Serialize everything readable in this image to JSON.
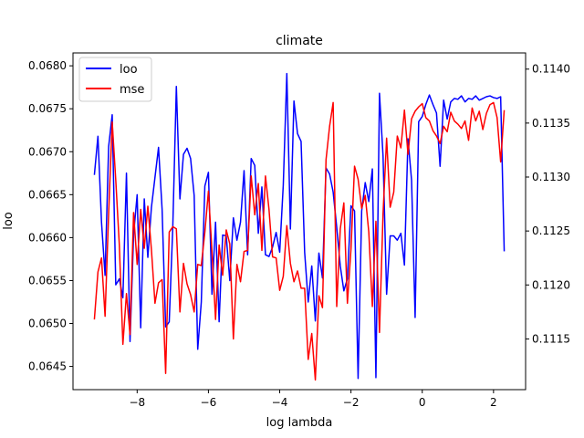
{
  "chart_data": {
    "type": "line",
    "title": "climate",
    "xlabel": "log lambda",
    "ylabel_left": "loo",
    "ylabel_right": "",
    "xlim": [
      -9.8,
      2.9
    ],
    "ylim_left": [
      0.06423,
      0.06815
    ],
    "ylim_right": [
      0.11103,
      0.11415
    ],
    "x_ticks": [
      -8,
      -6,
      -4,
      -2,
      0,
      2
    ],
    "x_tick_labels": [
      "−8",
      "−6",
      "−4",
      "−2",
      "0",
      "2"
    ],
    "y_left_ticks": [
      0.0645,
      0.065,
      0.0655,
      0.066,
      0.0665,
      0.067,
      0.0675,
      0.068
    ],
    "y_left_tick_labels": [
      "0.0645",
      "0.0650",
      "0.0655",
      "0.0660",
      "0.0665",
      "0.0670",
      "0.0675",
      "0.0680"
    ],
    "y_right_ticks": [
      0.1115,
      0.112,
      0.1125,
      0.113,
      0.1135,
      0.114
    ],
    "y_right_tick_labels": [
      "0.1115",
      "0.1120",
      "0.1125",
      "0.1130",
      "0.1135",
      "0.1140"
    ],
    "grid": false,
    "legend_position": "top-left",
    "series": [
      {
        "name": "loo",
        "color": "#0000ff",
        "axis": "left",
        "points": [
          [
            -9.2,
            0.06673
          ],
          [
            -9.1,
            0.06718
          ],
          [
            -9.0,
            0.06618
          ],
          [
            -8.9,
            0.06556
          ],
          [
            -8.8,
            0.06706
          ],
          [
            -8.7,
            0.06743
          ],
          [
            -8.6,
            0.06545
          ],
          [
            -8.5,
            0.06552
          ],
          [
            -8.4,
            0.0653
          ],
          [
            -8.3,
            0.06675
          ],
          [
            -8.2,
            0.06479
          ],
          [
            -8.1,
            0.06603
          ],
          [
            -8.0,
            0.0665
          ],
          [
            -7.9,
            0.06495
          ],
          [
            -7.8,
            0.06645
          ],
          [
            -7.7,
            0.06577
          ],
          [
            -7.6,
            0.06635
          ],
          [
            -7.5,
            0.0667
          ],
          [
            -7.4,
            0.06705
          ],
          [
            -7.3,
            0.06633
          ],
          [
            -7.2,
            0.06496
          ],
          [
            -7.1,
            0.06502
          ],
          [
            -7.0,
            0.06612
          ],
          [
            -6.9,
            0.06776
          ],
          [
            -6.8,
            0.06645
          ],
          [
            -6.7,
            0.06697
          ],
          [
            -6.6,
            0.06704
          ],
          [
            -6.5,
            0.06692
          ],
          [
            -6.4,
            0.06649
          ],
          [
            -6.3,
            0.0647
          ],
          [
            -6.2,
            0.06525
          ],
          [
            -6.1,
            0.0666
          ],
          [
            -6.0,
            0.06676
          ],
          [
            -5.9,
            0.06534
          ],
          [
            -5.8,
            0.06618
          ],
          [
            -5.7,
            0.06502
          ],
          [
            -5.6,
            0.06603
          ],
          [
            -5.5,
            0.06602
          ],
          [
            -5.4,
            0.0655
          ],
          [
            -5.3,
            0.06623
          ],
          [
            -5.2,
            0.06597
          ],
          [
            -5.1,
            0.06618
          ],
          [
            -5.0,
            0.06678
          ],
          [
            -4.9,
            0.0658
          ],
          [
            -4.8,
            0.06692
          ],
          [
            -4.7,
            0.06684
          ],
          [
            -4.6,
            0.06605
          ],
          [
            -4.5,
            0.06659
          ],
          [
            -4.4,
            0.0658
          ],
          [
            -4.3,
            0.06578
          ],
          [
            -4.2,
            0.06589
          ],
          [
            -4.1,
            0.06606
          ],
          [
            -4.0,
            0.06583
          ],
          [
            -3.9,
            0.06661
          ],
          [
            -3.8,
            0.06791
          ],
          [
            -3.7,
            0.0661
          ],
          [
            -3.6,
            0.06759
          ],
          [
            -3.5,
            0.06721
          ],
          [
            -3.4,
            0.06712
          ],
          [
            -3.3,
            0.06583
          ],
          [
            -3.2,
            0.06525
          ],
          [
            -3.1,
            0.06567
          ],
          [
            -3.0,
            0.06503
          ],
          [
            -2.9,
            0.06582
          ],
          [
            -2.8,
            0.06553
          ],
          [
            -2.7,
            0.06681
          ],
          [
            -2.6,
            0.06674
          ],
          [
            -2.5,
            0.06653
          ],
          [
            -2.4,
            0.06612
          ],
          [
            -2.3,
            0.06567
          ],
          [
            -2.2,
            0.06538
          ],
          [
            -2.1,
            0.06552
          ],
          [
            -2.0,
            0.06637
          ],
          [
            -1.9,
            0.06631
          ],
          [
            -1.8,
            0.06436
          ],
          [
            -1.7,
            0.06631
          ],
          [
            -1.6,
            0.06664
          ],
          [
            -1.5,
            0.06642
          ],
          [
            -1.4,
            0.0668
          ],
          [
            -1.3,
            0.06437
          ],
          [
            -1.2,
            0.06768
          ],
          [
            -1.1,
            0.06695
          ],
          [
            -1.0,
            0.06534
          ],
          [
            -0.9,
            0.06602
          ],
          [
            -0.8,
            0.06602
          ],
          [
            -0.7,
            0.06597
          ],
          [
            -0.6,
            0.06605
          ],
          [
            -0.5,
            0.06568
          ],
          [
            -0.4,
            0.06715
          ],
          [
            -0.3,
            0.06667
          ],
          [
            -0.2,
            0.06507
          ],
          [
            -0.1,
            0.06735
          ],
          [
            0.0,
            0.06741
          ],
          [
            0.1,
            0.06755
          ],
          [
            0.2,
            0.06766
          ],
          [
            0.3,
            0.06755
          ],
          [
            0.4,
            0.06745
          ],
          [
            0.5,
            0.06683
          ],
          [
            0.6,
            0.0676
          ],
          [
            0.7,
            0.06738
          ],
          [
            0.8,
            0.06758
          ],
          [
            0.9,
            0.06762
          ],
          [
            1.0,
            0.06761
          ],
          [
            1.1,
            0.06765
          ],
          [
            1.2,
            0.06758
          ],
          [
            1.3,
            0.06762
          ],
          [
            1.4,
            0.06761
          ],
          [
            1.5,
            0.06765
          ],
          [
            1.6,
            0.0676
          ],
          [
            1.7,
            0.06762
          ],
          [
            1.8,
            0.06764
          ],
          [
            1.9,
            0.06765
          ],
          [
            2.0,
            0.06763
          ],
          [
            2.1,
            0.06762
          ],
          [
            2.2,
            0.06764
          ],
          [
            2.3,
            0.06584
          ]
        ]
      },
      {
        "name": "mse",
        "color": "#ff0000",
        "axis": "right",
        "points": [
          [
            -9.2,
            0.11168
          ],
          [
            -9.1,
            0.11212
          ],
          [
            -9.0,
            0.11225
          ],
          [
            -8.9,
            0.11171
          ],
          [
            -8.8,
            0.11266
          ],
          [
            -8.7,
            0.11351
          ],
          [
            -8.6,
            0.11297
          ],
          [
            -8.5,
            0.11237
          ],
          [
            -8.4,
            0.11145
          ],
          [
            -8.3,
            0.11192
          ],
          [
            -8.2,
            0.11154
          ],
          [
            -8.1,
            0.11267
          ],
          [
            -8.0,
            0.11219
          ],
          [
            -7.9,
            0.1127
          ],
          [
            -7.8,
            0.11234
          ],
          [
            -7.7,
            0.11273
          ],
          [
            -7.6,
            0.11233
          ],
          [
            -7.5,
            0.11183
          ],
          [
            -7.4,
            0.11202
          ],
          [
            -7.3,
            0.11205
          ],
          [
            -7.2,
            0.11118
          ],
          [
            -7.1,
            0.11249
          ],
          [
            -7.0,
            0.11254
          ],
          [
            -6.9,
            0.11252
          ],
          [
            -6.8,
            0.11175
          ],
          [
            -6.7,
            0.1122
          ],
          [
            -6.6,
            0.11201
          ],
          [
            -6.5,
            0.11191
          ],
          [
            -6.4,
            0.11175
          ],
          [
            -6.3,
            0.11219
          ],
          [
            -6.2,
            0.11218
          ],
          [
            -6.1,
            0.11249
          ],
          [
            -6.0,
            0.11287
          ],
          [
            -5.9,
            0.11231
          ],
          [
            -5.8,
            0.11168
          ],
          [
            -5.7,
            0.11237
          ],
          [
            -5.6,
            0.11209
          ],
          [
            -5.5,
            0.11251
          ],
          [
            -5.4,
            0.11238
          ],
          [
            -5.3,
            0.1115
          ],
          [
            -5.2,
            0.11219
          ],
          [
            -5.1,
            0.11203
          ],
          [
            -5.0,
            0.11231
          ],
          [
            -4.9,
            0.11232
          ],
          [
            -4.8,
            0.11301
          ],
          [
            -4.7,
            0.11265
          ],
          [
            -4.6,
            0.11294
          ],
          [
            -4.5,
            0.11232
          ],
          [
            -4.4,
            0.11301
          ],
          [
            -4.3,
            0.1127
          ],
          [
            -4.2,
            0.11226
          ],
          [
            -4.1,
            0.11225
          ],
          [
            -4.0,
            0.11195
          ],
          [
            -3.9,
            0.11208
          ],
          [
            -3.8,
            0.11255
          ],
          [
            -3.7,
            0.1122
          ],
          [
            -3.6,
            0.11203
          ],
          [
            -3.5,
            0.11213
          ],
          [
            -3.4,
            0.11197
          ],
          [
            -3.3,
            0.11197
          ],
          [
            -3.2,
            0.11131
          ],
          [
            -3.1,
            0.11155
          ],
          [
            -3.0,
            0.11112
          ],
          [
            -2.9,
            0.1119
          ],
          [
            -2.8,
            0.11179
          ],
          [
            -2.7,
            0.11316
          ],
          [
            -2.6,
            0.11347
          ],
          [
            -2.5,
            0.11369
          ],
          [
            -2.4,
            0.1118
          ],
          [
            -2.3,
            0.11252
          ],
          [
            -2.2,
            0.11276
          ],
          [
            -2.1,
            0.11183
          ],
          [
            -2.0,
            0.11233
          ],
          [
            -1.9,
            0.1131
          ],
          [
            -1.8,
            0.11298
          ],
          [
            -1.7,
            0.11271
          ],
          [
            -1.6,
            0.11283
          ],
          [
            -1.5,
            0.11249
          ],
          [
            -1.4,
            0.1118
          ],
          [
            -1.3,
            0.11259
          ],
          [
            -1.2,
            0.11156
          ],
          [
            -1.1,
            0.11266
          ],
          [
            -1.0,
            0.11336
          ],
          [
            -0.9,
            0.11272
          ],
          [
            -0.8,
            0.11286
          ],
          [
            -0.7,
            0.11338
          ],
          [
            -0.6,
            0.11327
          ],
          [
            -0.5,
            0.11362
          ],
          [
            -0.4,
            0.11321
          ],
          [
            -0.3,
            0.11354
          ],
          [
            -0.2,
            0.11361
          ],
          [
            -0.1,
            0.11365
          ],
          [
            0.0,
            0.11368
          ],
          [
            0.1,
            0.11355
          ],
          [
            0.2,
            0.11352
          ],
          [
            0.3,
            0.11343
          ],
          [
            0.4,
            0.11338
          ],
          [
            0.5,
            0.11331
          ],
          [
            0.6,
            0.11347
          ],
          [
            0.7,
            0.11342
          ],
          [
            0.8,
            0.1136
          ],
          [
            0.9,
            0.11352
          ],
          [
            1.0,
            0.11349
          ],
          [
            1.1,
            0.11345
          ],
          [
            1.2,
            0.11352
          ],
          [
            1.3,
            0.11334
          ],
          [
            1.4,
            0.11364
          ],
          [
            1.5,
            0.11352
          ],
          [
            1.6,
            0.11361
          ],
          [
            1.7,
            0.11344
          ],
          [
            1.8,
            0.11359
          ],
          [
            1.9,
            0.11367
          ],
          [
            2.0,
            0.11369
          ],
          [
            2.1,
            0.11355
          ],
          [
            2.2,
            0.11314
          ],
          [
            2.3,
            0.11362
          ]
        ]
      }
    ]
  }
}
